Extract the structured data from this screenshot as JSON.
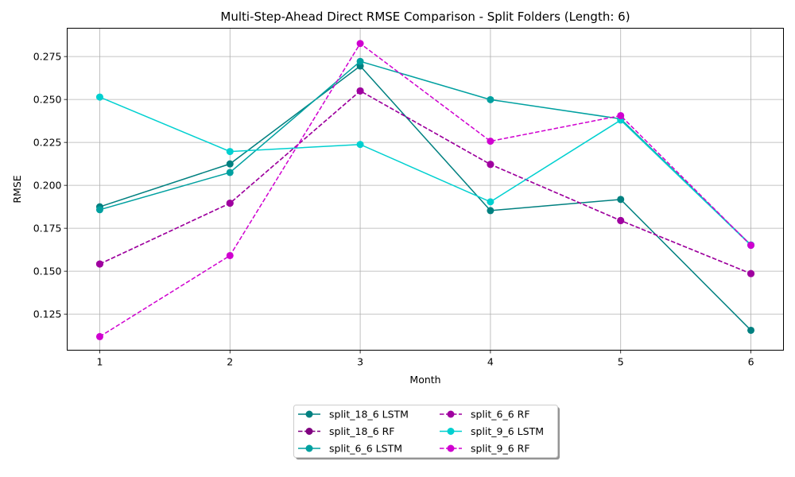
{
  "chart_data": {
    "type": "line",
    "title": "Multi-Step-Ahead Direct RMSE Comparison - Split Folders (Length: 6)",
    "xlabel": "Month",
    "ylabel": "RMSE",
    "x": [
      1,
      2,
      3,
      4,
      5,
      6
    ],
    "xticks": [
      "1",
      "2",
      "3",
      "4",
      "5",
      "6"
    ],
    "yticks": [
      "0.125",
      "0.150",
      "0.175",
      "0.200",
      "0.225",
      "0.250",
      "0.275"
    ],
    "ytick_values": [
      0.125,
      0.15,
      0.175,
      0.2,
      0.225,
      0.25,
      0.275
    ],
    "xlim": [
      0.75,
      6.25
    ],
    "ylim": [
      0.104,
      0.2915
    ],
    "grid": true,
    "legend_position": "bottom-center",
    "legend_columns": 2,
    "series": [
      {
        "name": "split_18_6 LSTM",
        "values": [
          0.1875,
          0.2125,
          0.2695,
          0.1853,
          0.1918,
          0.1156
        ],
        "color": "#008080",
        "dash": "solid"
      },
      {
        "name": "split_18_6 RF",
        "values": [
          0.1542,
          0.1896,
          0.255,
          0.2122,
          0.1795,
          0.1486
        ],
        "color": "#800080",
        "dash": "dashed"
      },
      {
        "name": "split_6_6 LSTM",
        "values": [
          0.1858,
          0.2075,
          0.2722,
          0.2499,
          0.2387,
          0.1653
        ],
        "color": "#00a0a0",
        "dash": "solid"
      },
      {
        "name": "split_6_6 RF",
        "values": [
          0.1542,
          0.1896,
          0.255,
          0.2122,
          0.1795,
          0.1486
        ],
        "color": "#a000a0",
        "dash": "dashed"
      },
      {
        "name": "split_9_6 LSTM",
        "values": [
          0.2514,
          0.2197,
          0.2238,
          0.1904,
          0.238,
          0.1651
        ],
        "color": "#00d0d0",
        "dash": "solid"
      },
      {
        "name": "split_9_6 RF",
        "values": [
          0.1119,
          0.1591,
          0.2826,
          0.2257,
          0.2406,
          0.1651
        ],
        "color": "#d000d0",
        "dash": "dashed"
      }
    ]
  }
}
